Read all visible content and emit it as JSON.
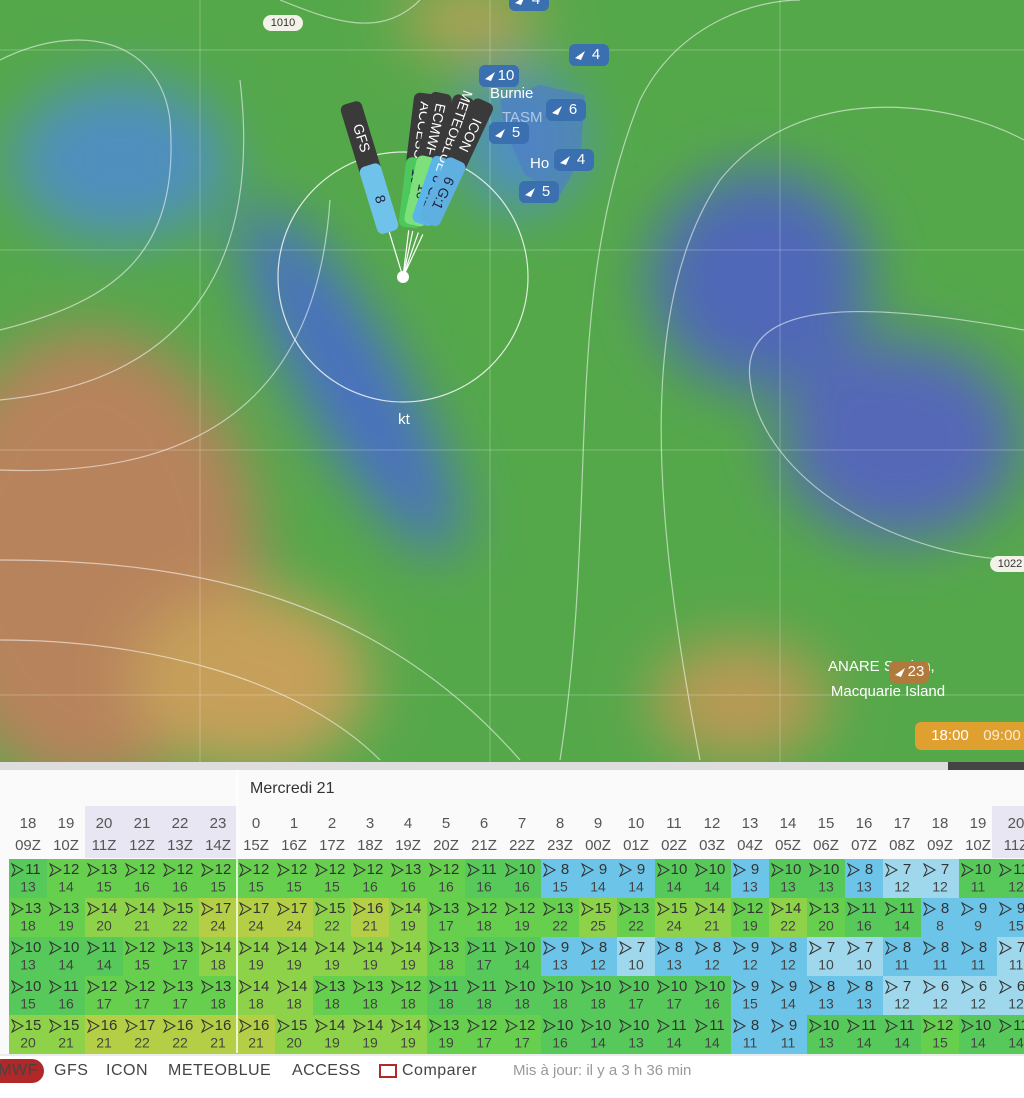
{
  "map": {
    "isobars": [
      "1010",
      "1022"
    ],
    "unit": "kt",
    "places": [
      "Burnie",
      "TASM",
      "Ho",
      "ANARE Station,",
      "Macquarie Island"
    ],
    "stations": [
      "4",
      "4",
      "6",
      "4",
      "5",
      "5",
      "10",
      "23"
    ],
    "models": [
      {
        "name": "GFS",
        "value": "8"
      },
      {
        "name": "ACCESS",
        "value": "10 G:14"
      },
      {
        "name": "ECMWF",
        "value": "10"
      },
      {
        "name": "METEOBLUE",
        "value": "8 G:1"
      },
      {
        "name": "ICON",
        "value": "6 G:1"
      }
    ],
    "time": [
      "18:00",
      "09:00"
    ]
  },
  "table": {
    "date": "Mercredi 21",
    "hours": [
      "18",
      "19",
      "20",
      "21",
      "22",
      "23",
      "0",
      "1",
      "2",
      "3",
      "4",
      "5",
      "6",
      "7",
      "8",
      "9",
      "10",
      "11",
      "12",
      "13",
      "14",
      "15",
      "16",
      "17",
      "18",
      "19",
      "20"
    ],
    "utc": [
      "09Z",
      "10Z",
      "11Z",
      "12Z",
      "13Z",
      "14Z",
      "15Z",
      "16Z",
      "17Z",
      "18Z",
      "19Z",
      "20Z",
      "21Z",
      "22Z",
      "23Z",
      "00Z",
      "01Z",
      "02Z",
      "03Z",
      "04Z",
      "05Z",
      "06Z",
      "07Z",
      "08Z",
      "09Z",
      "10Z",
      "11Z"
    ],
    "rows": [
      {
        "speeds": [
          11,
          12,
          13,
          12,
          12,
          12,
          12,
          12,
          12,
          12,
          13,
          12,
          11,
          10,
          8,
          9,
          9,
          10,
          10,
          9,
          10,
          10,
          8,
          7,
          7,
          10,
          11
        ],
        "gusts": [
          13,
          14,
          15,
          16,
          16,
          15,
          15,
          15,
          15,
          16,
          16,
          16,
          16,
          16,
          15,
          14,
          14,
          14,
          14,
          13,
          13,
          13,
          13,
          12,
          12,
          11,
          12
        ]
      },
      {
        "speeds": [
          13,
          13,
          14,
          14,
          15,
          17,
          17,
          17,
          15,
          16,
          14,
          13,
          12,
          12,
          13,
          15,
          13,
          15,
          14,
          12,
          14,
          13,
          11,
          11,
          8,
          9,
          9
        ],
        "gusts": [
          18,
          19,
          20,
          21,
          22,
          24,
          24,
          24,
          22,
          21,
          19,
          17,
          18,
          19,
          22,
          25,
          22,
          24,
          21,
          19,
          22,
          20,
          16,
          14,
          8,
          9,
          15
        ]
      },
      {
        "speeds": [
          10,
          10,
          11,
          12,
          13,
          14,
          14,
          14,
          14,
          14,
          14,
          13,
          11,
          10,
          9,
          8,
          7,
          8,
          8,
          9,
          8,
          7,
          7,
          8,
          8,
          8,
          7
        ],
        "gusts": [
          13,
          14,
          14,
          15,
          17,
          18,
          19,
          19,
          19,
          19,
          19,
          18,
          17,
          14,
          13,
          12,
          10,
          13,
          12,
          12,
          12,
          10,
          10,
          11,
          11,
          11,
          11
        ]
      },
      {
        "speeds": [
          10,
          11,
          12,
          12,
          13,
          13,
          14,
          14,
          13,
          13,
          12,
          11,
          11,
          10,
          10,
          10,
          10,
          10,
          10,
          9,
          9,
          8,
          8,
          7,
          6,
          6,
          6
        ],
        "gusts": [
          15,
          16,
          17,
          17,
          17,
          18,
          18,
          18,
          18,
          18,
          18,
          18,
          18,
          18,
          18,
          18,
          17,
          17,
          16,
          15,
          14,
          13,
          13,
          12,
          12,
          12,
          12
        ]
      },
      {
        "speeds": [
          15,
          15,
          16,
          17,
          16,
          16,
          16,
          15,
          14,
          14,
          14,
          13,
          12,
          12,
          10,
          10,
          10,
          11,
          11,
          8,
          9,
          10,
          11,
          11,
          12,
          10,
          11
        ],
        "gusts": [
          20,
          21,
          21,
          22,
          22,
          21,
          21,
          20,
          19,
          19,
          19,
          19,
          17,
          17,
          16,
          14,
          13,
          14,
          14,
          11,
          11,
          13,
          14,
          14,
          15,
          14,
          14
        ]
      }
    ]
  },
  "tabs": [
    "MWF",
    "GFS",
    "ICON",
    "METEOBLUE",
    "ACCESS",
    "Comparer"
  ],
  "updated": "Mis à jour: il y a 3 h 36 min"
}
